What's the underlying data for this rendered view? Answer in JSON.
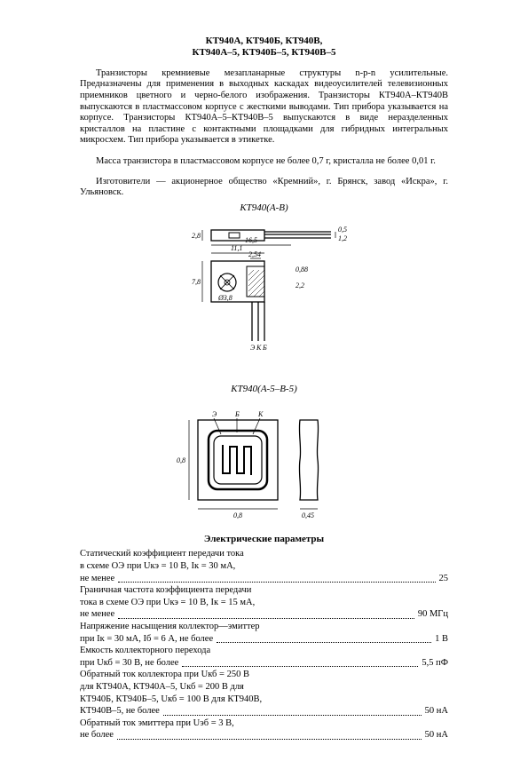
{
  "title_line1": "КТ940А, КТ940Б, КТ940В,",
  "title_line2": "КТ940А–5, КТ940Б–5, КТ940В–5",
  "para1": "Транзисторы кремниевые мезапланарные структуры n-p-n усилительные. Предназначены для применения в выходных каскадах видеоусилителей телевизионных приемников цветного и черно-белого изображения. Транзисторы КТ940А–КТ940В выпускаются в пластмассовом корпусе с жесткими выводами. Тип прибора указывается на корпусе. Транзисторы КТ940А–5–КТ940В–5 выпускаются в виде неразделенных кристаллов на пластине с контактными площадками для гибридных интегральных микросхем. Тип прибора указывается в этикетке.",
  "para2": "Масса транзистора в пластмассовом корпусе не более 0,7 г, кристалла не более 0,01 г.",
  "para3": "Изготовители — акционерное общество «Кремний», г. Брянск, завод «Искра», г. Ульяновск.",
  "diagram1_label": "КТ940(А-В)",
  "diagram2_label": "КТ940(А-5–В-5)",
  "dims1": {
    "h_tab": "2,8",
    "h_body": "7,8",
    "w_body": "11,1",
    "w_total": "16,5",
    "lead_w": "2,54",
    "lead_t": "0,5",
    "step1": "1,2",
    "step2": "0,88",
    "step3": "2,2",
    "hole": "Ø3,8"
  },
  "dims2": {
    "w": "0,8",
    "h": "0,8",
    "t": "0,45"
  },
  "pins": {
    "e": "Э",
    "k": "К",
    "b": "Б"
  },
  "section_params": "Электрические параметры",
  "params": [
    {
      "label_lines": [
        "Статический коэффициент передачи тока",
        "в схеме ОЭ при Uкэ = 10 В, Iк = 30 мА,",
        "не менее"
      ],
      "value": "25"
    },
    {
      "label_lines": [
        "Граничная частота коэффициента передачи",
        "тока в схеме ОЭ при Uкэ = 10 В, Iк = 15 мА,",
        "не менее"
      ],
      "value": "90 МГц"
    },
    {
      "label_lines": [
        "Напряжение насыщения коллектор—эмиттер",
        "при Iк = 30 мА, Iб = 6 А, не более"
      ],
      "value": "1 В"
    },
    {
      "label_lines": [
        "Емкость коллекторного перехода",
        "при Uкб = 30 В, не более"
      ],
      "value": "5,5 пФ"
    },
    {
      "label_lines": [
        "Обратный ток коллектора при Uкб = 250 В",
        "для КТ940А, КТ940А–5, Uкб = 200 В для",
        "КТ940Б, КТ940Б–5, Uкб = 100 В для КТ940В,",
        "КТ940В–5, не более"
      ],
      "value": "50 нА"
    },
    {
      "label_lines": [
        "Обратный ток эмиттера при Uэб = 3 В,",
        "не более"
      ],
      "value": "50 нА"
    }
  ]
}
